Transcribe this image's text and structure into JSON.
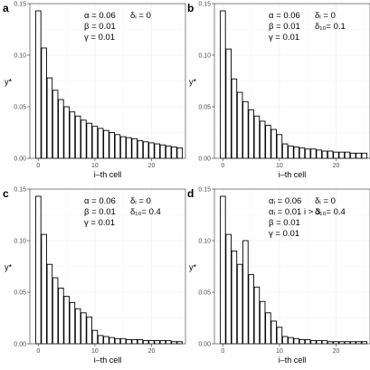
{
  "chart_data": [
    {
      "panel": "a",
      "type": "bar",
      "xlabel": "i–th cell",
      "ylabel": "y*",
      "ylim": [
        0,
        0.15
      ],
      "xlim": [
        -1.5,
        26
      ],
      "x_ticks": [
        0,
        10,
        20
      ],
      "y_ticks": [
        0.0,
        0.05,
        0.1,
        0.15
      ],
      "y_tick_labels": [
        "0.00",
        "0.05",
        "0.10",
        "0.15"
      ],
      "grid": true,
      "params": [
        "α = 0.06",
        "δᵢ = 0",
        "β = 0.01",
        "γ = 0.01"
      ],
      "x": [
        0,
        1,
        2,
        3,
        4,
        5,
        6,
        7,
        8,
        9,
        10,
        11,
        12,
        13,
        14,
        15,
        16,
        17,
        18,
        19,
        20,
        21,
        22,
        23,
        24,
        25
      ],
      "values": [
        0.143,
        0.107,
        0.078,
        0.066,
        0.057,
        0.05,
        0.045,
        0.041,
        0.037,
        0.034,
        0.031,
        0.029,
        0.027,
        0.025,
        0.023,
        0.021,
        0.02,
        0.019,
        0.017,
        0.016,
        0.015,
        0.014,
        0.013,
        0.012,
        0.011,
        0.01
      ]
    },
    {
      "panel": "b",
      "type": "bar",
      "xlabel": "i–th cell",
      "ylabel": "y*",
      "ylim": [
        0,
        0.15
      ],
      "xlim": [
        -1.5,
        26
      ],
      "x_ticks": [
        0,
        10,
        20
      ],
      "y_ticks": [
        0.0,
        0.05,
        0.1,
        0.15
      ],
      "y_tick_labels": [
        "0.00",
        "0.05",
        "0.10",
        "0.15"
      ],
      "grid": true,
      "params": [
        "α = 0.06",
        "δᵢ = 0",
        "β = 0.01",
        "δ₁₀= 0.1",
        "γ = 0.01"
      ],
      "x": [
        0,
        1,
        2,
        3,
        4,
        5,
        6,
        7,
        8,
        9,
        10,
        11,
        12,
        13,
        14,
        15,
        16,
        17,
        18,
        19,
        20,
        21,
        22,
        23,
        24,
        25
      ],
      "values": [
        0.143,
        0.106,
        0.077,
        0.064,
        0.055,
        0.047,
        0.041,
        0.036,
        0.032,
        0.028,
        0.023,
        0.014,
        0.012,
        0.011,
        0.01,
        0.009,
        0.009,
        0.008,
        0.007,
        0.007,
        0.006,
        0.006,
        0.006,
        0.005,
        0.005,
        0.005
      ]
    },
    {
      "panel": "c",
      "type": "bar",
      "xlabel": "i–th cell",
      "ylabel": "y*",
      "ylim": [
        0,
        0.15
      ],
      "xlim": [
        -1.5,
        26
      ],
      "x_ticks": [
        0,
        10,
        20
      ],
      "y_ticks": [
        0.0,
        0.05,
        0.1,
        0.15
      ],
      "y_tick_labels": [
        "0.00",
        "0.05",
        "0.10",
        "0.15"
      ],
      "grid": true,
      "params": [
        "α = 0.06",
        "δᵢ = 0",
        "β = 0.01",
        "δ₁₀= 0.4",
        "γ = 0.01"
      ],
      "x": [
        0,
        1,
        2,
        3,
        4,
        5,
        6,
        7,
        8,
        9,
        10,
        11,
        12,
        13,
        14,
        15,
        16,
        17,
        18,
        19,
        20,
        21,
        22,
        23,
        24,
        25
      ],
      "values": [
        0.143,
        0.106,
        0.077,
        0.064,
        0.054,
        0.046,
        0.04,
        0.034,
        0.03,
        0.026,
        0.013,
        0.008,
        0.007,
        0.006,
        0.005,
        0.005,
        0.004,
        0.004,
        0.004,
        0.003,
        0.003,
        0.003,
        0.003,
        0.003,
        0.002,
        0.002
      ]
    },
    {
      "panel": "d",
      "type": "bar",
      "xlabel": "i–th cell",
      "ylabel": "y*",
      "ylim": [
        0,
        0.15
      ],
      "xlim": [
        -1.5,
        26
      ],
      "x_ticks": [
        0,
        10,
        20
      ],
      "y_ticks": [
        0.0,
        0.05,
        0.1,
        0.15
      ],
      "y_tick_labels": [
        "0.00",
        "0.05",
        "0.10",
        "0.15"
      ],
      "grid": true,
      "params": [
        "αᵢ = 0.06",
        "δᵢ = 0",
        "αᵢ = 0.01 i > 3",
        "δ₁₀= 0.4",
        "β = 0.01",
        "γ = 0.01"
      ],
      "x": [
        0,
        1,
        2,
        3,
        4,
        5,
        6,
        7,
        8,
        9,
        10,
        11,
        12,
        13,
        14,
        15,
        16,
        17,
        18,
        19,
        20,
        21,
        22,
        23,
        24,
        25
      ],
      "values": [
        0.143,
        0.106,
        0.09,
        0.077,
        0.1,
        0.067,
        0.055,
        0.041,
        0.03,
        0.022,
        0.016,
        0.007,
        0.006,
        0.005,
        0.004,
        0.004,
        0.003,
        0.003,
        0.003,
        0.002,
        0.002,
        0.002,
        0.002,
        0.002,
        0.002,
        0.002
      ]
    }
  ]
}
